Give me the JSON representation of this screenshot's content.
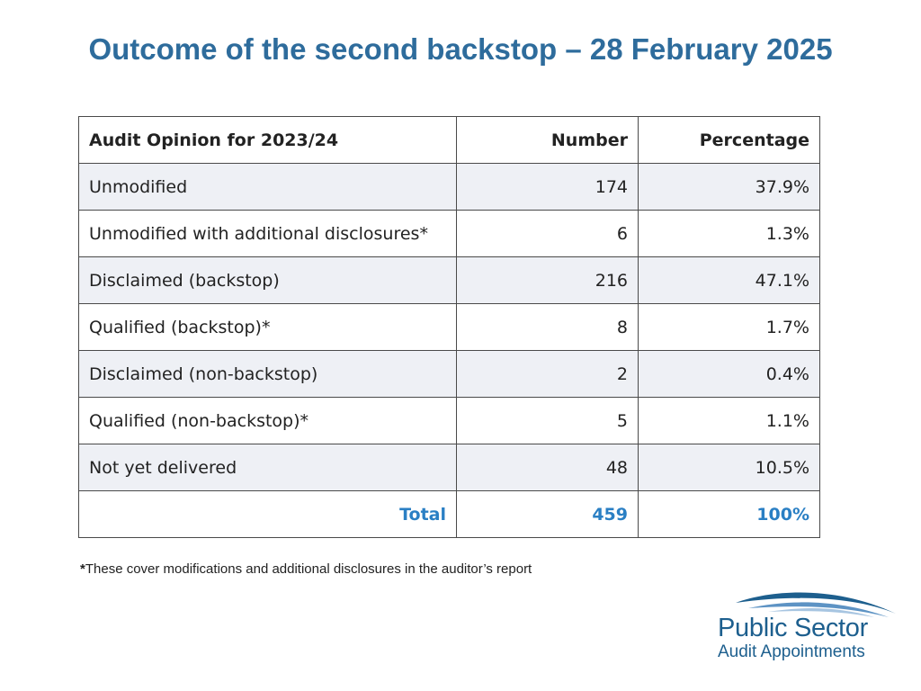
{
  "title": "Outcome of the second backstop – 28 February 2025",
  "table": {
    "headers": {
      "opinion": "Audit Opinion for 2023/24",
      "number": "Number",
      "percentage": "Percentage"
    },
    "rows": [
      {
        "opinion": "Unmodified",
        "number": "174",
        "percentage": "37.9%"
      },
      {
        "opinion": "Unmodified with additional disclosures*",
        "number": "6",
        "percentage": "1.3%"
      },
      {
        "opinion": "Disclaimed (backstop)",
        "number": "216",
        "percentage": "47.1%"
      },
      {
        "opinion": "Qualified (backstop)*",
        "number": "8",
        "percentage": "1.7%"
      },
      {
        "opinion": "Disclaimed (non-backstop)",
        "number": "2",
        "percentage": "0.4%"
      },
      {
        "opinion": "Qualified (non-backstop)*",
        "number": "5",
        "percentage": "1.1%"
      },
      {
        "opinion": "Not yet delivered",
        "number": "48",
        "percentage": "10.5%"
      }
    ],
    "total": {
      "label": "Total",
      "number": "459",
      "percentage": "100%"
    }
  },
  "footnote": {
    "marker": "*",
    "text": "These cover modifications and additional disclosures in the auditor’s report"
  },
  "logo": {
    "line1": "Public Sector",
    "line2": "Audit Appointments",
    "icon": "wave-swoosh-icon"
  },
  "colors": {
    "title": "#2e6c9c",
    "total": "#2a7fc4",
    "stripe": "#eef0f5",
    "logo": "#1d5f8e"
  }
}
